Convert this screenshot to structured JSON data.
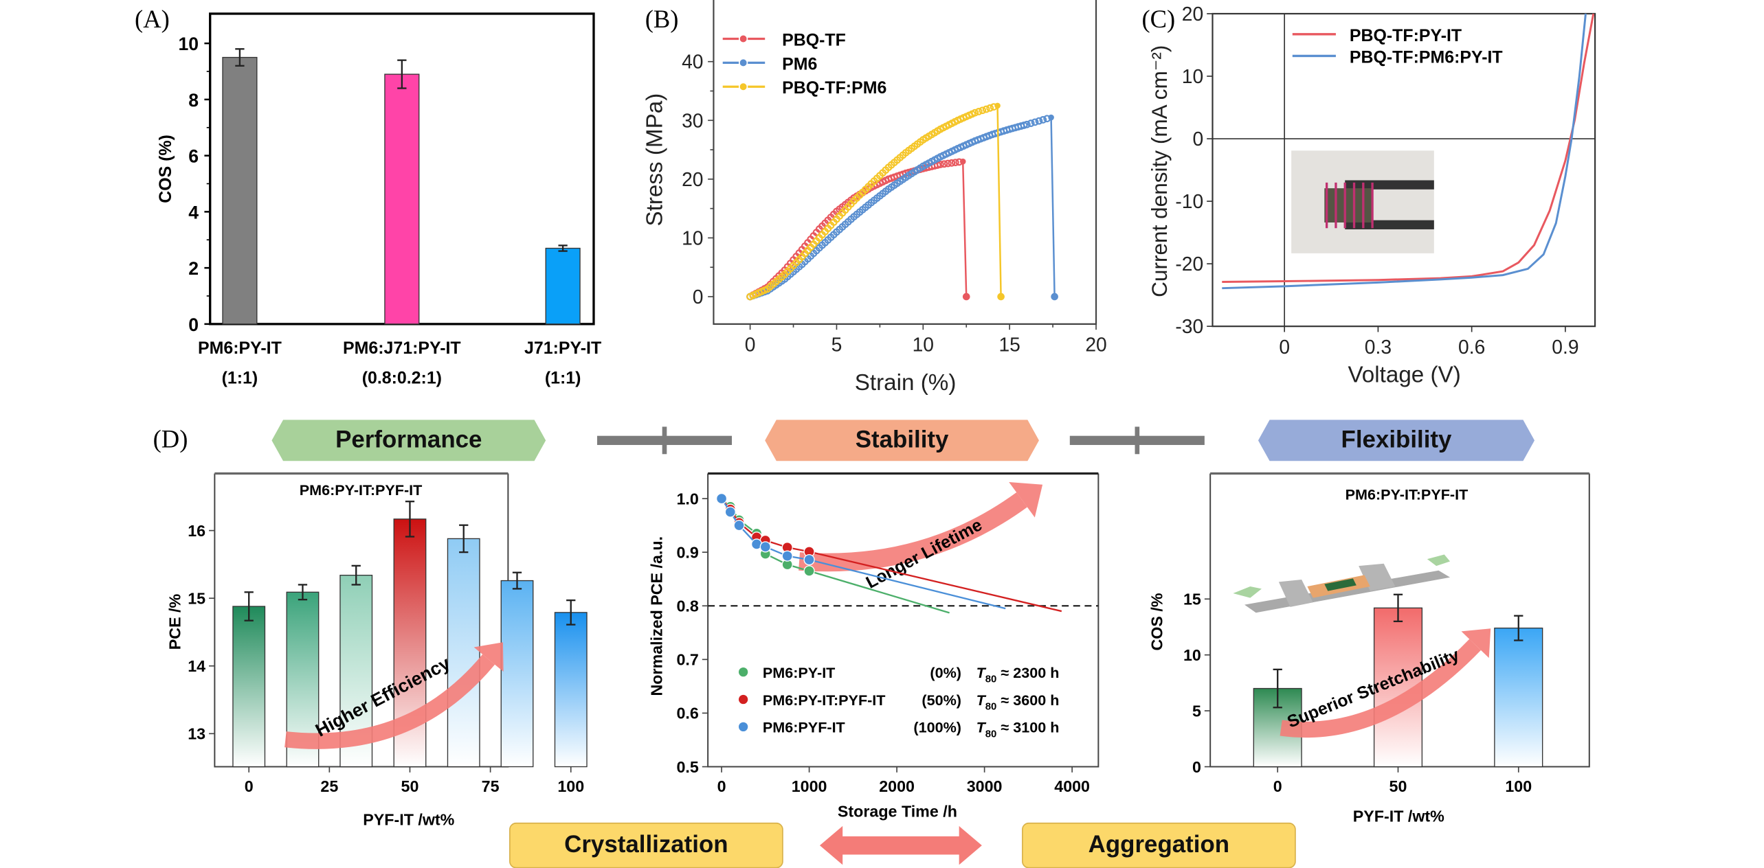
{
  "panel_labels": {
    "A": "(A)",
    "B": "(B)",
    "C": "(C)",
    "D": "(D)"
  },
  "banners": {
    "performance": "Performance",
    "stability": "Stability",
    "flexibility": "Flexibility",
    "crystallization": "Crystallization",
    "aggregation": "Aggregation"
  },
  "colors": {
    "gray": "#808080",
    "pink": "#ff44a8",
    "sky": "#0aa0f8",
    "red": "#e8585f",
    "blue": "#5a8fd0",
    "yellow": "#f5c629",
    "green": "#4caf6a",
    "darkred": "#d32020",
    "perf_banner": "#a8d19a",
    "stab_banner": "#f5aa88",
    "flex_banner": "#97abd9",
    "pill": "#fcd86a",
    "arrow": "#f47c78"
  },
  "chart_data": [
    {
      "id": "A",
      "type": "bar",
      "title": "",
      "xlabel": "",
      "ylabel": "COS (%)",
      "ylim": [
        0,
        11
      ],
      "yticks": [
        "0",
        "2",
        "4",
        "6",
        "8",
        "10"
      ],
      "categories": [
        {
          "line1": "PM6:PY-IT",
          "line2": "(1:1)"
        },
        {
          "line1": "PM6:J71:PY-IT",
          "line2": "(0.8:0.2:1)"
        },
        {
          "line1": "J71:PY-IT",
          "line2": "(1:1)"
        }
      ],
      "values": [
        9.5,
        8.9,
        2.7
      ],
      "errors": [
        0.3,
        0.5,
        0.1
      ],
      "bar_colors": [
        "#808080",
        "#ff44a8",
        "#0aa0f8"
      ]
    },
    {
      "id": "B",
      "type": "line",
      "xlabel": "Strain (%)",
      "ylabel": "Stress (MPa)",
      "xlim": [
        -2,
        20
      ],
      "ylim": [
        -5,
        45
      ],
      "xticks": [
        "0",
        "5",
        "10",
        "15",
        "20"
      ],
      "yticks": [
        "0",
        "10",
        "20",
        "30",
        "40"
      ],
      "legend_position": "top-left",
      "series": [
        {
          "name": "PBQ-TF",
          "color": "#e8585f",
          "break_strain": 12.5,
          "max_stress": 23,
          "points": [
            [
              0,
              0
            ],
            [
              1,
              1.6
            ],
            [
              2,
              4.5
            ],
            [
              3,
              8
            ],
            [
              4,
              11.5
            ],
            [
              5,
              14.5
            ],
            [
              6,
              16.8
            ],
            [
              7,
              18.6
            ],
            [
              8,
              20
            ],
            [
              9,
              21
            ],
            [
              10,
              21.8
            ],
            [
              11,
              22.5
            ],
            [
              12.3,
              23
            ]
          ]
        },
        {
          "name": "PM6",
          "color": "#5a8fd0",
          "break_strain": 17.6,
          "max_stress": 30.5,
          "points": [
            [
              0,
              0
            ],
            [
              1,
              1
            ],
            [
              2,
              3
            ],
            [
              3,
              5.5
            ],
            [
              4,
              8.3
            ],
            [
              5,
              11
            ],
            [
              6,
              13.6
            ],
            [
              7,
              16
            ],
            [
              8,
              18.3
            ],
            [
              9,
              20.3
            ],
            [
              10,
              22.2
            ],
            [
              11,
              23.8
            ],
            [
              12,
              25.2
            ],
            [
              13,
              26.5
            ],
            [
              14,
              27.6
            ],
            [
              15,
              28.5
            ],
            [
              16,
              29.3
            ],
            [
              17.4,
              30.5
            ]
          ]
        },
        {
          "name": "PBQ-TF:PM6",
          "color": "#f5c629",
          "break_strain": 14.5,
          "max_stress": 32.5,
          "points": [
            [
              0,
              0
            ],
            [
              1,
              1.3
            ],
            [
              2,
              3.8
            ],
            [
              3,
              6.8
            ],
            [
              4,
              10
            ],
            [
              5,
              13.2
            ],
            [
              6,
              16.3
            ],
            [
              7,
              19.2
            ],
            [
              8,
              22
            ],
            [
              9,
              24.5
            ],
            [
              10,
              26.7
            ],
            [
              11,
              28.5
            ],
            [
              12,
              30
            ],
            [
              13,
              31.3
            ],
            [
              14.3,
              32.5
            ]
          ]
        }
      ]
    },
    {
      "id": "C",
      "type": "line",
      "xlabel": "Voltage (V)",
      "ylabel": "Current density (mA cm⁻²)",
      "xlim": [
        -0.2,
        1.0
      ],
      "ylim": [
        -30,
        20
      ],
      "xticks": [
        "0",
        "0.3",
        "0.6",
        "0.9"
      ],
      "yticks": [
        "-30",
        "-20",
        "-10",
        "0",
        "10",
        "20"
      ],
      "legend_position": "top-center",
      "series": [
        {
          "name": "PBQ-TF:PY-IT",
          "color": "#e8585f",
          "points": [
            [
              -0.2,
              -22.9
            ],
            [
              0,
              -22.8
            ],
            [
              0.3,
              -22.6
            ],
            [
              0.5,
              -22.3
            ],
            [
              0.6,
              -22
            ],
            [
              0.7,
              -21.2
            ],
            [
              0.75,
              -19.8
            ],
            [
              0.8,
              -17
            ],
            [
              0.85,
              -11.5
            ],
            [
              0.9,
              -3.5
            ],
            [
              0.93,
              3
            ],
            [
              0.96,
              12
            ],
            [
              0.99,
              20
            ]
          ]
        },
        {
          "name": "PBQ-TF:PM6:PY-IT",
          "color": "#5a8fd0",
          "points": [
            [
              -0.2,
              -23.9
            ],
            [
              0,
              -23.6
            ],
            [
              0.3,
              -23
            ],
            [
              0.5,
              -22.5
            ],
            [
              0.6,
              -22.2
            ],
            [
              0.7,
              -21.8
            ],
            [
              0.78,
              -20.8
            ],
            [
              0.83,
              -18.5
            ],
            [
              0.87,
              -13.5
            ],
            [
              0.9,
              -6
            ],
            [
              0.92,
              0
            ],
            [
              0.945,
              10
            ],
            [
              0.965,
              20
            ]
          ]
        }
      ],
      "inset": "photo of stretched flexible device on holder"
    },
    {
      "id": "D-performance",
      "type": "bar",
      "title": "PM6:PY-IT:PYF-IT",
      "xlabel": "PYF-IT /wt%",
      "ylabel": "PCE /%",
      "ylim": [
        12.5,
        16.8
      ],
      "xlim": [
        -8,
        108
      ],
      "xticks": [
        "0",
        "25",
        "50",
        "75",
        "100"
      ],
      "yticks": [
        "13",
        "14",
        "15",
        "16"
      ],
      "x": [
        0,
        16.7,
        33.3,
        50,
        66.7,
        83.3,
        100
      ],
      "values": [
        14.88,
        15.09,
        15.34,
        16.17,
        15.88,
        15.26,
        14.79
      ],
      "errors": [
        0.21,
        0.11,
        0.14,
        0.26,
        0.2,
        0.12,
        0.18
      ],
      "bar_colors": [
        "#1f8a5a",
        "#3aa37a",
        "#8fcfb6",
        "#cc1111",
        "#8fcbf4",
        "#5ab2f2",
        "#1890ee"
      ],
      "annotation": "Higher Efficiency"
    },
    {
      "id": "D-stability",
      "type": "line",
      "xlabel": "Storage Time /h",
      "ylabel": "Normalized PCE /a.u.",
      "xlim": [
        -100,
        4300
      ],
      "ylim": [
        0.5,
        1.05
      ],
      "xticks": [
        "0",
        "1000",
        "2000",
        "3000",
        "4000"
      ],
      "yticks": [
        "0.5",
        "0.6",
        "0.7",
        "0.8",
        "0.9",
        "1.0"
      ],
      "reference_line": 0.8,
      "annotation": "Longer Lifetime",
      "legend_position": "bottom-left",
      "series": [
        {
          "name": "PM6:PY-IT",
          "ratio": "(0%)",
          "t80_label": "T",
          "t80_sub": "80",
          "t80_value": "≈ 2300 h",
          "color": "#4caf6a",
          "points": [
            [
              0,
              1.0
            ],
            [
              100,
              0.985
            ],
            [
              200,
              0.96
            ],
            [
              400,
              0.935
            ],
            [
              500,
              0.897
            ],
            [
              750,
              0.877
            ],
            [
              1000,
              0.865
            ]
          ],
          "fit": [
            [
              1000,
              0.865
            ],
            [
              2600,
              0.787
            ]
          ]
        },
        {
          "name": "PM6:PY-IT:PYF-IT",
          "ratio": "(50%)",
          "t80_label": "T",
          "t80_sub": "80",
          "t80_value": "≈ 3600 h",
          "color": "#d32020",
          "points": [
            [
              0,
              1.0
            ],
            [
              100,
              0.98
            ],
            [
              200,
              0.955
            ],
            [
              400,
              0.928
            ],
            [
              500,
              0.922
            ],
            [
              750,
              0.909
            ],
            [
              1000,
              0.901
            ]
          ],
          "fit": [
            [
              1000,
              0.901
            ],
            [
              3880,
              0.79
            ]
          ]
        },
        {
          "name": "PM6:PYF-IT",
          "ratio": "(100%)",
          "t80_label": "T",
          "t80_sub": "80",
          "t80_value": "≈ 3100 h",
          "color": "#4a8fd8",
          "points": [
            [
              0,
              1.0
            ],
            [
              100,
              0.975
            ],
            [
              200,
              0.95
            ],
            [
              400,
              0.915
            ],
            [
              500,
              0.91
            ],
            [
              750,
              0.893
            ],
            [
              1000,
              0.886
            ]
          ],
          "fit": [
            [
              1000,
              0.886
            ],
            [
              3240,
              0.795
            ]
          ]
        }
      ]
    },
    {
      "id": "D-flexibility",
      "type": "bar",
      "title": "PM6:PY-IT:PYF-IT",
      "xlabel": "PYF-IT /wt%",
      "ylabel": "COS /%",
      "ylim": [
        0,
        18
      ],
      "xlim": [
        -30,
        130
      ],
      "xticks": [
        "0",
        "50",
        "100"
      ],
      "yticks": [
        "0",
        "5",
        "10",
        "15"
      ],
      "x": [
        0,
        50,
        100
      ],
      "values": [
        7.0,
        14.2,
        12.4
      ],
      "errors": [
        1.7,
        1.2,
        1.1
      ],
      "bar_colors": [
        "#2e8a52",
        "#f26b6b",
        "#3aa6f5"
      ],
      "annotation": "Superior Stretchability"
    }
  ]
}
